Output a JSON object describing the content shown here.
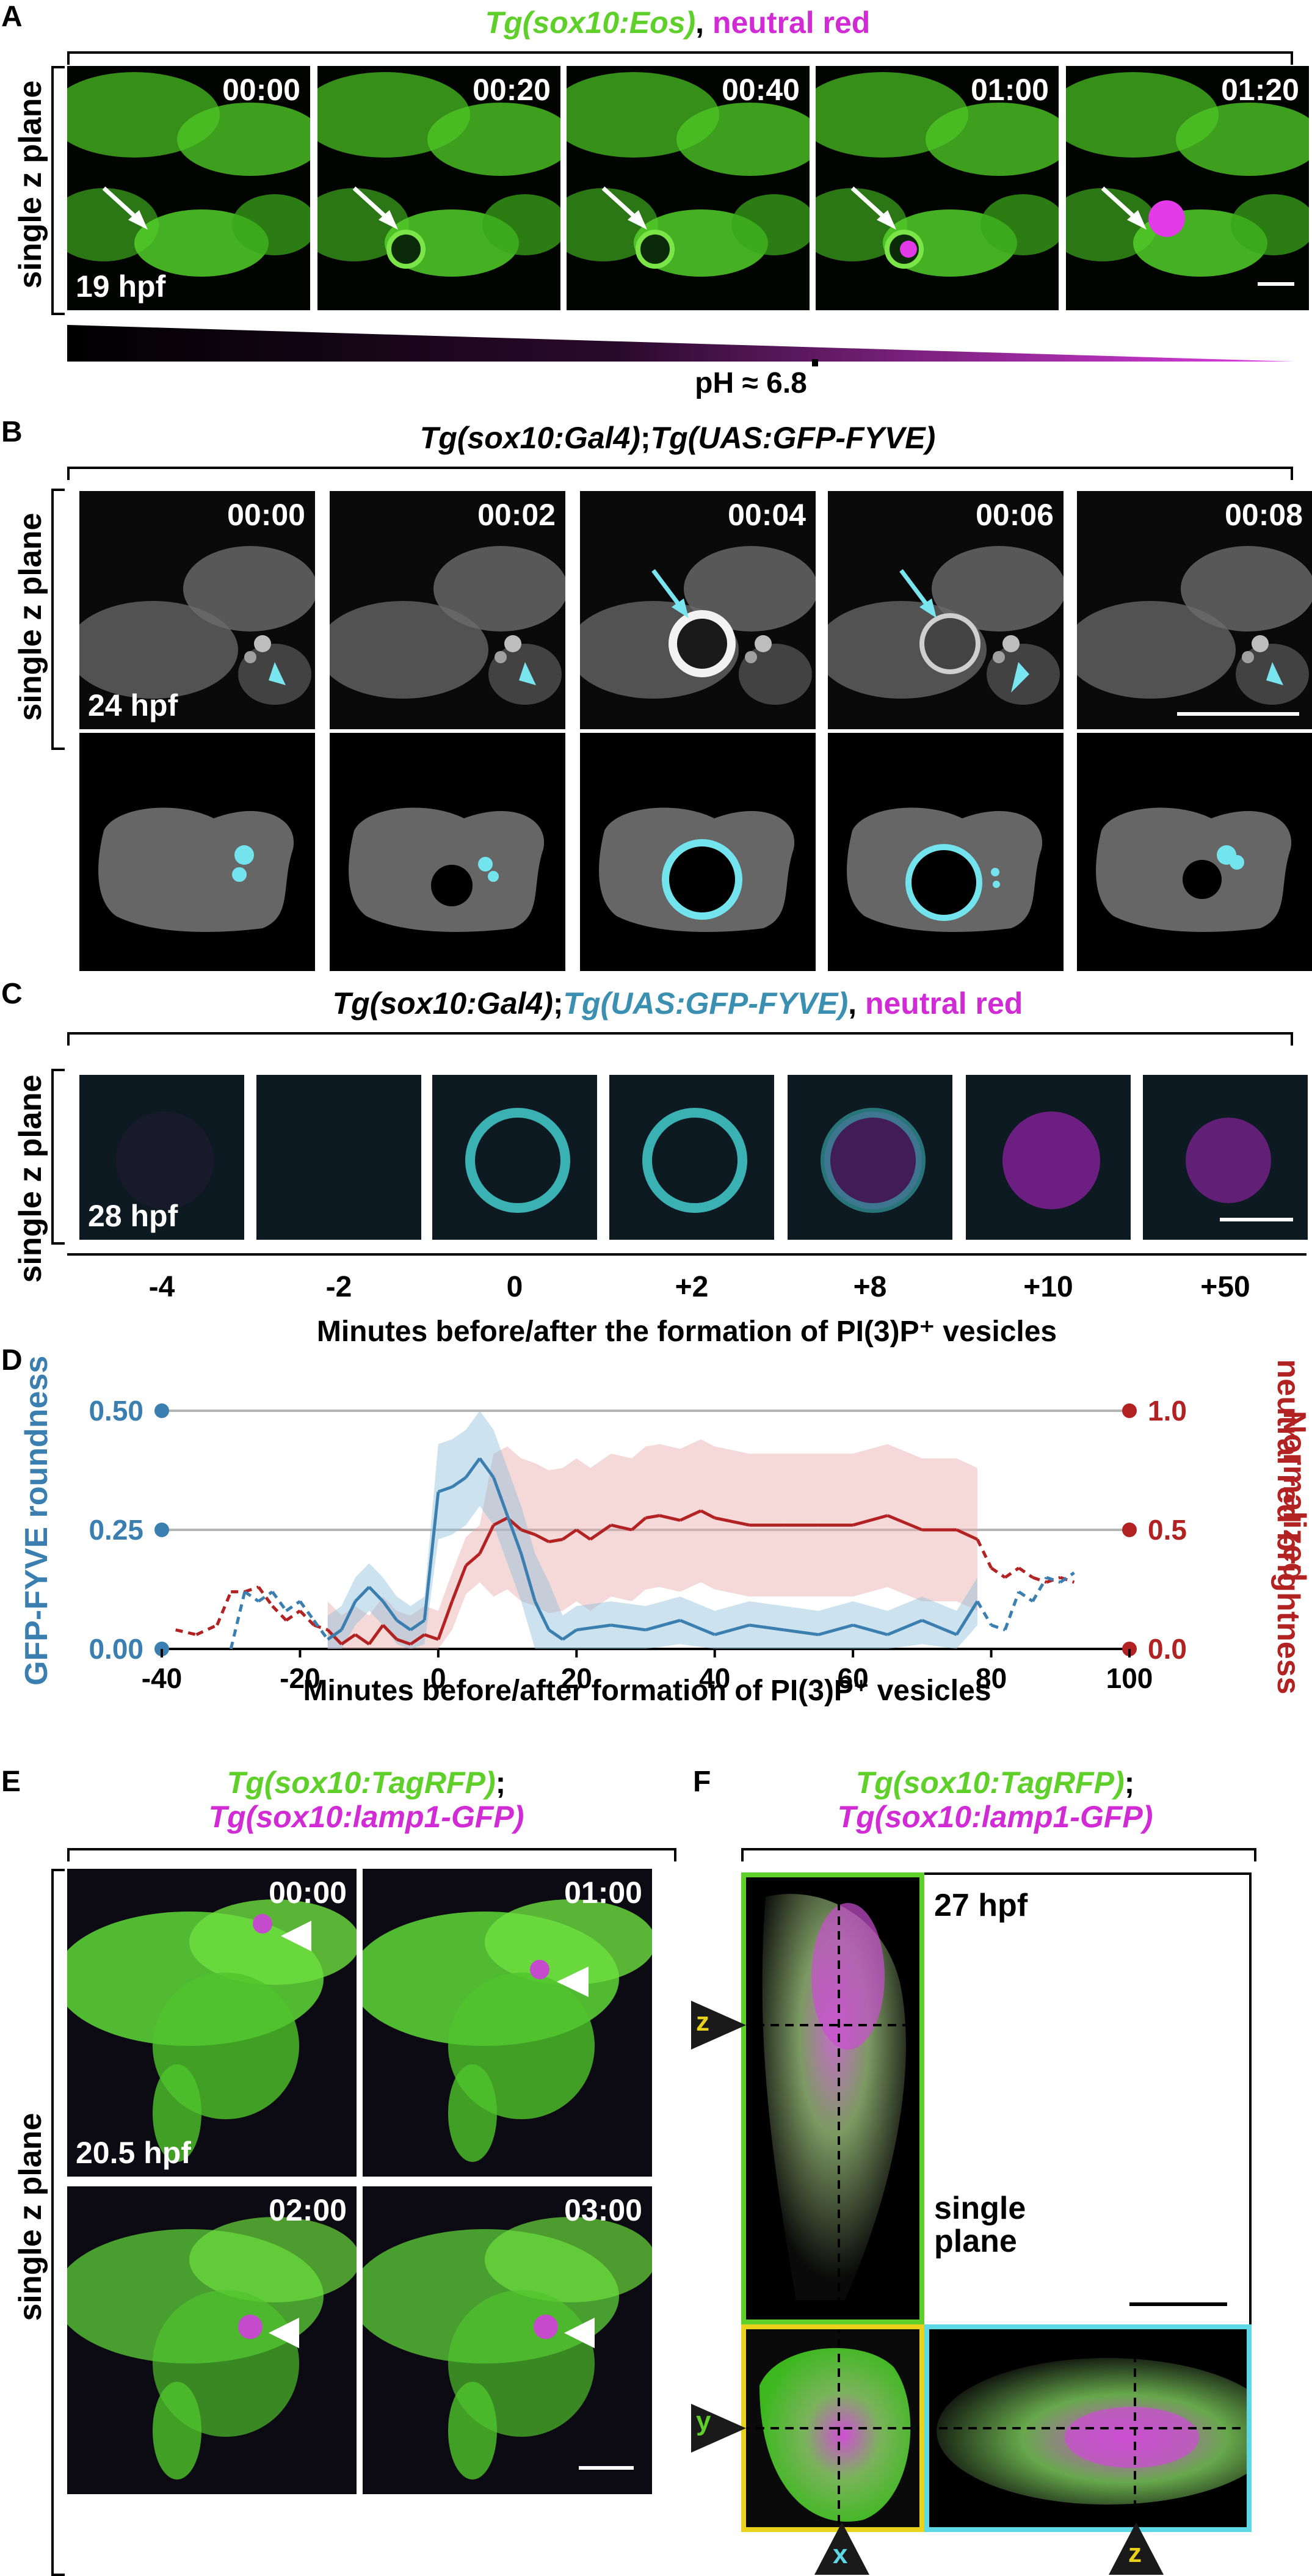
{
  "panel_a": {
    "letter": "A",
    "title_part1": "Tg(sox10:Eos)",
    "title_sep": ", ",
    "title_part2": "neutral red",
    "side_label": "single z plane",
    "timepoints": [
      "00:00",
      "00:20",
      "00:40",
      "01:00",
      "01:20"
    ],
    "stage": "19 hpf",
    "ph_label": "pH ≈ 6.8"
  },
  "panel_b": {
    "letter": "B",
    "title_part1": "Tg(sox10:Gal4)",
    "title_sep": ";",
    "title_part2": "Tg(UAS:GFP-FYVE)",
    "side_label": "single z plane",
    "timepoints": [
      "00:00",
      "00:02",
      "00:04",
      "00:06",
      "00:08"
    ],
    "stage": "24 hpf"
  },
  "panel_c": {
    "letter": "C",
    "title_part1": "Tg(sox10:Gal4)",
    "title_sep1": ";",
    "title_part2": "Tg(UAS:GFP-FYVE)",
    "title_sep2": ", ",
    "title_part3": "neutral red",
    "side_label": "single z plane",
    "stage": "28 hpf",
    "ticks": [
      "-4",
      "-2",
      "0",
      "+2",
      "+8",
      "+10",
      "+50"
    ],
    "xlabel": "Minutes before/after the formation of PI(3)P⁺ vesicles"
  },
  "panel_d": {
    "letter": "D",
    "left_axis_label": "GFP-FYVE roundness",
    "right_axis_label_line1": "Normalized",
    "right_axis_label_line2": "neutral red brightness",
    "xlabel": "Minutes before/after formation of PI(3)P⁺ vesicles",
    "left_ticks": [
      "0.50",
      "0.25",
      "0.00"
    ],
    "right_ticks": [
      "1.0",
      "0.5",
      "0.0"
    ],
    "x_ticks": [
      "-40",
      "-20",
      "0",
      "20",
      "40",
      "60",
      "80",
      "100"
    ]
  },
  "panel_e": {
    "letter": "E",
    "title_line1": "Tg(sox10:TagRFP)",
    "title_line1_sep": ";",
    "title_line2": "Tg(sox10:lamp1-GFP)",
    "side_label": "single z plane",
    "timepoints": [
      "00:00",
      "01:00",
      "02:00",
      "03:00"
    ],
    "stage": "20.5 hpf"
  },
  "panel_f": {
    "letter": "F",
    "title_line1": "Tg(sox10:TagRFP)",
    "title_line1_sep": ";",
    "title_line2": "Tg(sox10:lamp1-GFP)",
    "stage": "27 hpf",
    "note_line1": "single",
    "note_line2": "plane",
    "marker_z": "z",
    "marker_y": "y",
    "marker_x": "x",
    "marker_z2": "z"
  },
  "colors": {
    "green": "#5fcf2a",
    "magenta": "#d12bd6",
    "cyan": "#5fd8e6",
    "blue_series": "#3b7fb0",
    "red_series": "#b22222",
    "yellow": "#e8d21c"
  },
  "chart_data": {
    "type": "line",
    "xlabel": "Minutes before/after formation of PI(3)P⁺ vesicles",
    "ylabel": "GFP-FYVE roundness",
    "ylabel_right": "Normalized neutral red brightness",
    "xlim": [
      -40,
      100
    ],
    "ylim": [
      0,
      0.5
    ],
    "ylim_right": [
      0,
      1.0
    ],
    "grid": "horizontal",
    "series": [
      {
        "name": "GFP-FYVE roundness",
        "axis": "left",
        "x": [
          -30,
          -28,
          -26,
          -24,
          -22,
          -20,
          -18,
          -16,
          -14,
          -12,
          -10,
          -8,
          -6,
          -4,
          -2,
          0,
          2,
          4,
          6,
          8,
          10,
          12,
          14,
          16,
          18,
          20,
          25,
          30,
          35,
          40,
          45,
          50,
          55,
          60,
          65,
          70,
          75,
          78,
          80,
          82,
          84,
          86,
          88,
          90,
          92
        ],
        "y": [
          0.0,
          0.12,
          0.1,
          0.12,
          0.08,
          0.1,
          0.06,
          0.02,
          0.04,
          0.1,
          0.13,
          0.1,
          0.06,
          0.04,
          0.06,
          0.33,
          0.34,
          0.36,
          0.4,
          0.36,
          0.28,
          0.2,
          0.1,
          0.04,
          0.02,
          0.04,
          0.05,
          0.04,
          0.06,
          0.03,
          0.05,
          0.04,
          0.03,
          0.05,
          0.03,
          0.06,
          0.03,
          0.1,
          0.05,
          0.04,
          0.12,
          0.1,
          0.15,
          0.14,
          0.16
        ],
        "dashed_ranges": [
          [
            -30,
            -16
          ],
          [
            78,
            92
          ]
        ]
      },
      {
        "name": "Normalized neutral red brightness",
        "axis": "right",
        "x": [
          -38,
          -35,
          -32,
          -30,
          -28,
          -26,
          -24,
          -22,
          -20,
          -18,
          -16,
          -14,
          -12,
          -10,
          -8,
          -6,
          -4,
          -2,
          0,
          2,
          4,
          6,
          8,
          10,
          12,
          14,
          16,
          18,
          20,
          22,
          25,
          28,
          30,
          32,
          35,
          38,
          40,
          45,
          50,
          55,
          60,
          65,
          70,
          75,
          78,
          80,
          82,
          84,
          86,
          88,
          90,
          92
        ],
        "y": [
          0.08,
          0.06,
          0.1,
          0.24,
          0.24,
          0.26,
          0.18,
          0.12,
          0.16,
          0.1,
          0.08,
          0.02,
          0.06,
          0.02,
          0.1,
          0.04,
          0.02,
          0.06,
          0.04,
          0.2,
          0.35,
          0.4,
          0.52,
          0.55,
          0.5,
          0.48,
          0.45,
          0.46,
          0.5,
          0.46,
          0.52,
          0.5,
          0.55,
          0.56,
          0.54,
          0.58,
          0.55,
          0.52,
          0.52,
          0.52,
          0.52,
          0.56,
          0.5,
          0.5,
          0.46,
          0.34,
          0.3,
          0.34,
          0.3,
          0.28,
          0.3,
          0.28
        ],
        "dashed_ranges": [
          [
            -38,
            -16
          ],
          [
            78,
            92
          ]
        ]
      }
    ]
  }
}
